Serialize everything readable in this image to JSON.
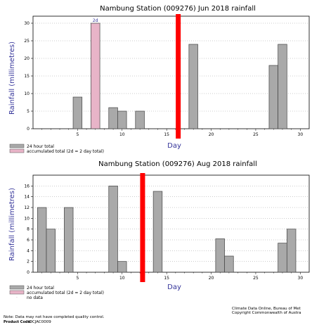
{
  "chart_data": [
    {
      "type": "bar",
      "title": "Nambung Station (009276) Jun 2018 rainfall",
      "xlabel": "Day",
      "ylabel": "Rainfall (millimetres)",
      "xlim": [
        0,
        31
      ],
      "ylim": [
        0,
        32
      ],
      "x_ticks": [
        5,
        10,
        15,
        20,
        25,
        30
      ],
      "y_ticks": [
        0,
        5,
        10,
        15,
        20,
        25,
        30
      ],
      "colors": {
        "daily": "#a9a9a9",
        "accumulated": "#e8b4c8",
        "marker": "#ff0000"
      },
      "marker_day": 16.3,
      "series": [
        {
          "name": "24 hour total",
          "x": [
            5,
            9,
            10,
            12,
            18,
            27,
            28
          ],
          "values": [
            9,
            6,
            5,
            5,
            24,
            18,
            24
          ]
        },
        {
          "name": "accumulated total (2d = 2 day total)",
          "x": [
            7
          ],
          "values": [
            30
          ],
          "labels": [
            "2d"
          ]
        }
      ],
      "legend": [
        "24 hour total",
        "accumulated total (2d = 2 day total)"
      ]
    },
    {
      "type": "bar",
      "title": "Nambung Station (009276) Aug 2018 rainfall",
      "xlabel": "Day",
      "ylabel": "Rainfall (millimetres)",
      "xlim": [
        0,
        31
      ],
      "ylim": [
        0,
        18
      ],
      "x_ticks": [
        5,
        10,
        15,
        20,
        25,
        30
      ],
      "y_ticks": [
        0,
        2,
        4,
        6,
        8,
        10,
        12,
        14,
        16
      ],
      "colors": {
        "daily": "#a9a9a9",
        "accumulated": "#e8b4c8",
        "marker": "#ff0000"
      },
      "marker_day": 12.3,
      "series": [
        {
          "name": "24 hour total",
          "x": [
            1,
            2,
            4,
            9,
            10,
            14,
            21,
            22,
            28,
            29
          ],
          "values": [
            12,
            8,
            12,
            16,
            2,
            15,
            6.2,
            3,
            5.4,
            8
          ]
        }
      ],
      "legend": [
        "24 hour total",
        "accumulated total (2d = 2 day total)",
        "no data"
      ]
    }
  ],
  "footer": {
    "note": "Note: Data may not have completed quality control.",
    "product_label": "Product Code:",
    "product_code": "IDCJAC0009",
    "credit_line1": "Climate Data Online, Bureau of Met",
    "credit_line2": "Copyright Commonwealth of Austra"
  }
}
